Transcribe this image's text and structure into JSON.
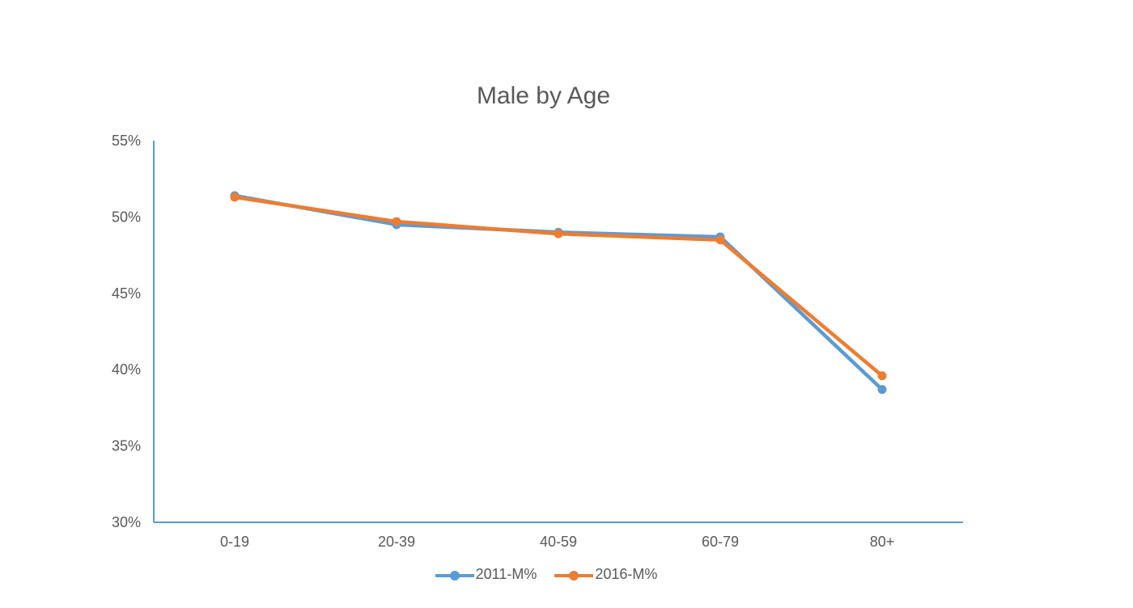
{
  "chart_data": {
    "type": "line",
    "title": "Male by Age",
    "categories": [
      "0-19",
      "20-39",
      "40-59",
      "60-79",
      "80+"
    ],
    "ylim": [
      0.3,
      0.55
    ],
    "yticks": [
      "30%",
      "35%",
      "40%",
      "45%",
      "50%",
      "55%"
    ],
    "ytick_values": [
      0.3,
      0.35,
      0.4,
      0.45,
      0.5,
      0.55
    ],
    "grid": false,
    "legend_position": "bottom",
    "series": [
      {
        "name": "2011-M%",
        "color": "#5B9BD5",
        "values": [
          0.514,
          0.495,
          0.49,
          0.487,
          0.387
        ]
      },
      {
        "name": "2016-M%",
        "color": "#ED7D31",
        "values": [
          0.513,
          0.497,
          0.489,
          0.485,
          0.396
        ]
      }
    ]
  },
  "colors": {
    "axis": "#5B9BD5",
    "text": "#595959"
  }
}
